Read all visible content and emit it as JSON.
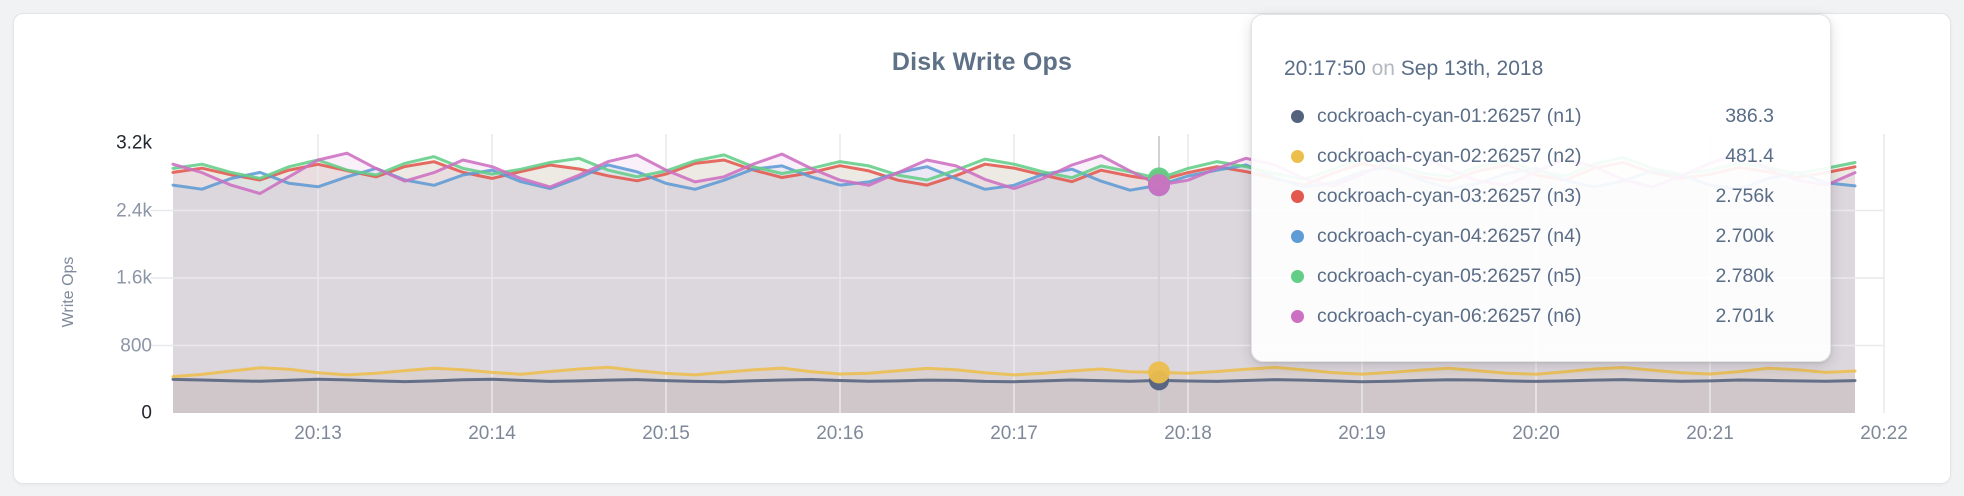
{
  "page": {
    "background": "#f0f2f4"
  },
  "card": {
    "background": "#ffffff",
    "border_color": "#e2e5e9"
  },
  "chart": {
    "title": "Disk Write Ops",
    "title_color": "#5e7186",
    "y_axis_label": "Write Ops",
    "axis_text_color": "#7e8899",
    "axis_emphasis_color": "#23272f",
    "grid_color": "#e9e9ec",
    "crosshair_color": "#d2d2d6",
    "y_ticks": [
      {
        "label": "0",
        "value": 0,
        "strong": true
      },
      {
        "label": "800",
        "value": 800,
        "strong": false
      },
      {
        "label": "1.6k",
        "value": 1600,
        "strong": false
      },
      {
        "label": "2.4k",
        "value": 2400,
        "strong": false
      },
      {
        "label": "3.2k",
        "value": 3200,
        "strong": true
      }
    ],
    "x_ticks": [
      "20:13",
      "20:14",
      "20:15",
      "20:16",
      "20:17",
      "20:18",
      "20:19",
      "20:20",
      "20:21",
      "20:22"
    ]
  },
  "chart_data": {
    "type": "line",
    "title": "Disk Write Ops",
    "ylabel": "Write Ops",
    "ylim": [
      0,
      3200
    ],
    "grid": true,
    "x_start": "20:12:10",
    "x_step_seconds": 10,
    "x_tick_labels": [
      "20:13",
      "20:14",
      "20:15",
      "20:16",
      "20:17",
      "20:18",
      "20:19",
      "20:20",
      "20:21",
      "20:22"
    ],
    "hover": {
      "index": 34,
      "time": "20:17:50"
    },
    "fill_opacity": 0.1,
    "series": [
      {
        "id": "n1",
        "name": "cockroach-cyan-01:26257 (n1)",
        "color": "#54627e",
        "hover_value": 386.3,
        "hover_label": "386.3",
        "values": [
          398,
          391,
          383,
          376,
          389,
          399,
          392,
          381,
          372,
          380,
          394,
          401,
          386,
          375,
          381,
          390,
          396,
          384,
          374,
          371,
          382,
          391,
          397,
          385,
          376,
          381,
          390,
          386,
          374,
          371,
          380,
          391,
          384,
          376,
          386.3,
          379,
          374,
          385,
          396,
          390,
          381,
          371,
          376,
          386,
          395,
          391,
          380,
          375,
          381,
          390,
          396,
          385,
          376,
          381,
          391,
          386,
          380,
          376,
          384
        ]
      },
      {
        "id": "n2",
        "name": "cockroach-cyan-02:26257 (n2)",
        "color": "#ecbe4c",
        "hover_value": 481.4,
        "hover_label": "481.4",
        "values": [
          432,
          458,
          498,
          536,
          518,
          478,
          452,
          470,
          502,
          531,
          512,
          481,
          460,
          492,
          521,
          543,
          502,
          469,
          451,
          482,
          511,
          532,
          491,
          462,
          472,
          501,
          529,
          512,
          478,
          452,
          470,
          499,
          522,
          490,
          481.4,
          471,
          492,
          519,
          541,
          511,
          479,
          461,
          481,
          509,
          531,
          501,
          470,
          459,
          489,
          521,
          539,
          509,
          478,
          462,
          491,
          531,
          512,
          481,
          498
        ]
      },
      {
        "id": "n3",
        "name": "cockroach-cyan-03:26257 (n3)",
        "color": "#e2584f",
        "hover_value": 2756,
        "hover_label": "2.756k",
        "values": [
          2852,
          2901,
          2823,
          2761,
          2879,
          2948,
          2872,
          2799,
          2921,
          2978,
          2851,
          2781,
          2862,
          2939,
          2892,
          2811,
          2752,
          2831,
          2958,
          2999,
          2881,
          2791,
          2849,
          2931,
          2869,
          2759,
          2701,
          2812,
          2949,
          2902,
          2821,
          2742,
          2878,
          2809,
          2756,
          2849,
          2919,
          2861,
          2779,
          2701,
          2842,
          2958,
          2889,
          2801,
          2749,
          2869,
          2938,
          2821,
          2762,
          2899,
          2969,
          2851,
          2781,
          2829,
          2911,
          2859,
          2791,
          2849,
          2918
        ]
      },
      {
        "id": "n4",
        "name": "cockroach-cyan-04:26257 (n4)",
        "color": "#5f9bd4",
        "hover_value": 2700,
        "hover_label": "2.700k",
        "values": [
          2701,
          2652,
          2779,
          2851,
          2722,
          2681,
          2799,
          2899,
          2761,
          2699,
          2821,
          2879,
          2741,
          2659,
          2789,
          2941,
          2859,
          2721,
          2651,
          2759,
          2889,
          2929,
          2799,
          2701,
          2739,
          2849,
          2919,
          2779,
          2651,
          2699,
          2829,
          2889,
          2749,
          2641,
          2700,
          2809,
          2879,
          2939,
          2789,
          2679,
          2731,
          2859,
          2919,
          2769,
          2659,
          2719,
          2839,
          2899,
          2759,
          2679,
          2749,
          2869,
          2819,
          2701,
          2651,
          2779,
          2849,
          2729,
          2691
        ]
      },
      {
        "id": "n5",
        "name": "cockroach-cyan-05:26257 (n5)",
        "color": "#64cd87",
        "hover_value": 2780,
        "hover_label": "2.780k",
        "values": [
          2899,
          2949,
          2851,
          2781,
          2919,
          2999,
          2879,
          2821,
          2959,
          3039,
          2899,
          2831,
          2889,
          2969,
          3019,
          2879,
          2799,
          2869,
          2989,
          3059,
          2919,
          2839,
          2899,
          2979,
          2929,
          2819,
          2761,
          2879,
          3009,
          2949,
          2859,
          2789,
          2929,
          2859,
          2780,
          2899,
          2979,
          2919,
          2839,
          2769,
          2889,
          3019,
          2939,
          2849,
          2799,
          2919,
          2989,
          2869,
          2809,
          2949,
          3029,
          2899,
          2829,
          2879,
          2959,
          2909,
          2839,
          2899,
          2969
        ]
      },
      {
        "id": "n6",
        "name": "cockroach-cyan-06:26257 (n6)",
        "color": "#cc70c1",
        "hover_value": 2701,
        "hover_label": "2.701k",
        "values": [
          2949,
          2849,
          2701,
          2601,
          2799,
          2999,
          3079,
          2899,
          2749,
          2849,
          2999,
          2919,
          2779,
          2679,
          2819,
          2979,
          3059,
          2879,
          2739,
          2799,
          2949,
          3069,
          2899,
          2759,
          2699,
          2849,
          2999,
          2929,
          2769,
          2659,
          2779,
          2939,
          3049,
          2869,
          2701,
          2759,
          2899,
          3019,
          2939,
          2779,
          2689,
          2829,
          2989,
          3059,
          2889,
          2749,
          2699,
          2859,
          3009,
          2919,
          2769,
          2679,
          2809,
          2959,
          3079,
          2899,
          2759,
          2699,
          2849
        ]
      }
    ]
  },
  "tooltip": {
    "time": "20:17:50",
    "preposition": "on",
    "date": "Sep 13th, 2018",
    "rows": [
      {
        "name": "cockroach-cyan-01:26257 (n1)",
        "value": "386.3"
      },
      {
        "name": "cockroach-cyan-02:26257 (n2)",
        "value": "481.4"
      },
      {
        "name": "cockroach-cyan-03:26257 (n3)",
        "value": "2.756k"
      },
      {
        "name": "cockroach-cyan-04:26257 (n4)",
        "value": "2.700k"
      },
      {
        "name": "cockroach-cyan-05:26257 (n5)",
        "value": "2.780k"
      },
      {
        "name": "cockroach-cyan-06:26257 (n6)",
        "value": "2.701k"
      }
    ]
  }
}
